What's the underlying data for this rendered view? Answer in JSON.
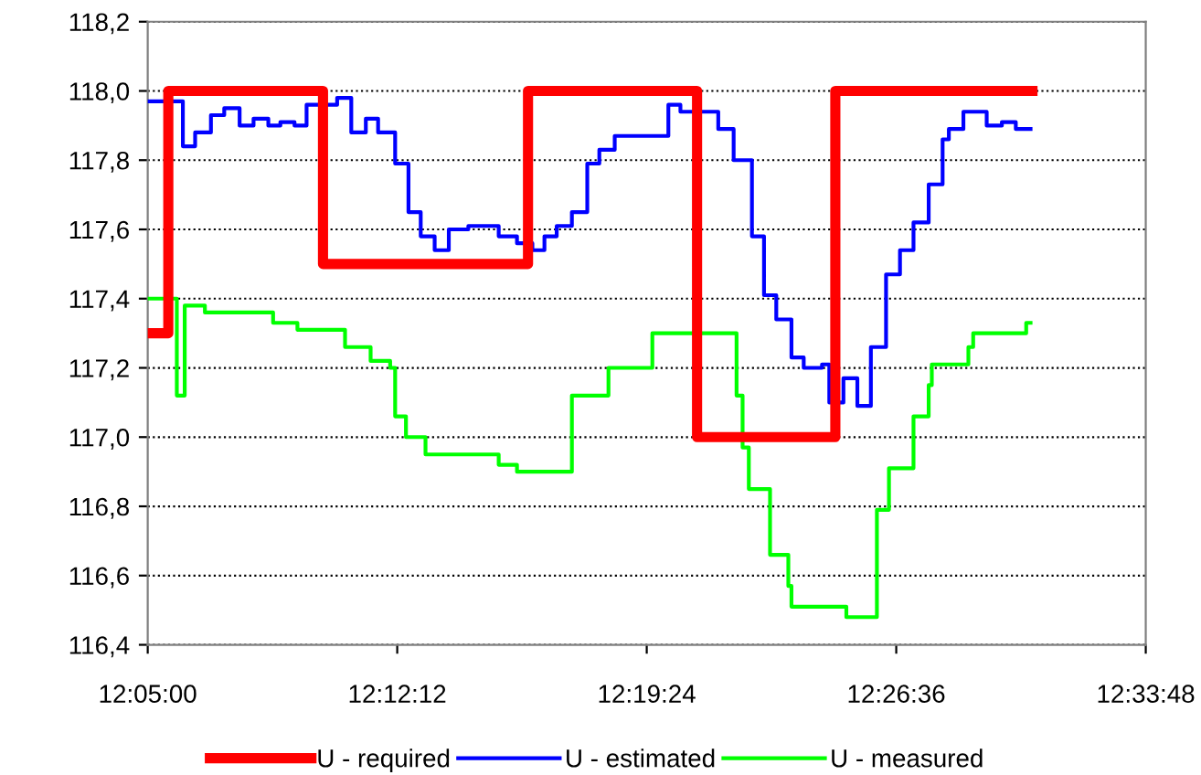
{
  "chart_data": {
    "type": "step",
    "grid": "y",
    "legend": "bottom",
    "line_style": "solid",
    "marker": "none",
    "xlim": [
      12.0833,
      12.5633
    ],
    "xticks": [
      {
        "value": 12.0833,
        "label": "12:05:00"
      },
      {
        "value": 12.2033,
        "label": "12:12:12"
      },
      {
        "value": 12.3233,
        "label": "12:19:24"
      },
      {
        "value": 12.4433,
        "label": "12:26:36"
      },
      {
        "value": 12.5633,
        "label": "12:33:48"
      }
    ],
    "ylim": [
      116.4,
      118.2
    ],
    "yticks": [
      {
        "value": 116.4,
        "label": "116,4"
      },
      {
        "value": 116.6,
        "label": "116,6"
      },
      {
        "value": 116.8,
        "label": "116,8"
      },
      {
        "value": 117.0,
        "label": "117,0"
      },
      {
        "value": 117.2,
        "label": "117,2"
      },
      {
        "value": 117.4,
        "label": "117,4"
      },
      {
        "value": 117.6,
        "label": "117,6"
      },
      {
        "value": 117.8,
        "label": "117,8"
      },
      {
        "value": 118.0,
        "label": "118,0"
      },
      {
        "value": 118.2,
        "label": "118,2"
      }
    ],
    "series": [
      {
        "name": "U - required",
        "color": "#ff0000",
        "x": [
          12.0833,
          12.0932,
          12.1676,
          12.2662,
          12.3475,
          12.414,
          12.5088
        ],
        "values": [
          117.3,
          118.0,
          117.5,
          118.0,
          117.0,
          118.0,
          118.0
        ]
      },
      {
        "name": "U - estimated",
        "color": "#0000ff",
        "x": [
          12.0835,
          12.1002,
          12.1061,
          12.1137,
          12.1201,
          12.1275,
          12.1342,
          12.1413,
          12.1471,
          12.1539,
          12.1597,
          12.1744,
          12.1812,
          12.1882,
          12.1941,
          12.2023,
          12.2087,
          12.2146,
          12.2213,
          12.2281,
          12.2375,
          12.2521,
          12.2609,
          12.2683,
          12.2741,
          12.28,
          12.2873,
          12.2947,
          12.3005,
          12.3079,
          12.3337,
          12.3395,
          12.3577,
          12.3651,
          12.3739,
          12.3797,
          12.3856,
          12.3929,
          12.3988,
          12.4076,
          12.4111,
          12.4179,
          12.4246,
          12.4311,
          12.4384,
          12.4451,
          12.4516,
          12.4589,
          12.4656,
          12.4686,
          12.4756,
          12.4868,
          12.4941,
          12.5008,
          12.5079
        ],
        "values": [
          117.97,
          117.84,
          117.88,
          117.93,
          117.95,
          117.9,
          117.92,
          117.9,
          117.91,
          117.9,
          117.96,
          117.98,
          117.88,
          117.92,
          117.88,
          117.79,
          117.65,
          117.58,
          117.54,
          117.6,
          117.61,
          117.58,
          117.56,
          117.54,
          117.58,
          117.61,
          117.65,
          117.79,
          117.83,
          117.87,
          117.96,
          117.94,
          117.89,
          117.8,
          117.58,
          117.41,
          117.34,
          117.23,
          117.2,
          117.21,
          117.1,
          117.17,
          117.09,
          117.26,
          117.47,
          117.54,
          117.62,
          117.73,
          117.86,
          117.89,
          117.94,
          117.9,
          117.91,
          117.89,
          117.89
        ]
      },
      {
        "name": "U - measured",
        "color": "#00ff00",
        "x": [
          12.0835,
          12.0973,
          12.1011,
          12.1108,
          12.1436,
          12.1553,
          12.1782,
          12.1905,
          12.1999,
          12.2023,
          12.2075,
          12.2169,
          12.2521,
          12.2609,
          12.2873,
          12.3049,
          12.326,
          12.3665,
          12.3694,
          12.3724,
          12.3826,
          12.3914,
          12.3929,
          12.4193,
          12.434,
          12.4398,
          12.4516,
          12.4589,
          12.4604,
          12.478,
          12.4803,
          12.5058,
          12.5079
        ],
        "values": [
          117.4,
          117.12,
          117.38,
          117.36,
          117.33,
          117.31,
          117.26,
          117.22,
          117.2,
          117.06,
          117.0,
          116.95,
          116.92,
          116.9,
          117.12,
          117.2,
          117.3,
          117.12,
          116.97,
          116.85,
          116.66,
          116.57,
          116.51,
          116.48,
          116.79,
          116.91,
          117.06,
          117.15,
          117.21,
          117.26,
          117.3,
          117.33,
          117.33
        ]
      }
    ]
  }
}
